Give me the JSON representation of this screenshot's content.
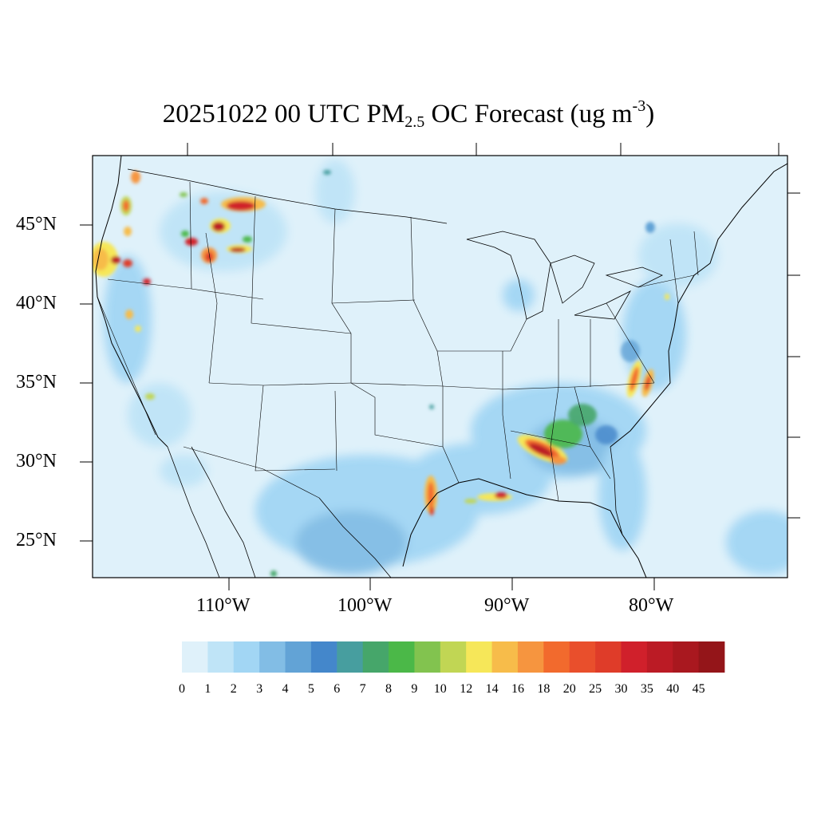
{
  "title": {
    "prefix": "20251022 00 UTC PM",
    "sub": "2.5",
    "mid": " OC Forecast (ug m",
    "sup": "-3",
    "suffix": ")"
  },
  "lat_labels": [
    "45°N",
    "40°N",
    "35°N",
    "30°N",
    "25°N"
  ],
  "lon_labels": [
    "110°W",
    "100°W",
    "90°W",
    "80°W"
  ],
  "colorbar": {
    "labels": [
      "0",
      "1",
      "2",
      "3",
      "4",
      "5",
      "6",
      "7",
      "8",
      "9",
      "10",
      "12",
      "14",
      "16",
      "18",
      "20",
      "25",
      "30",
      "35",
      "40",
      "45"
    ],
    "colors": [
      "#dff1fa",
      "#bfe4f7",
      "#a2d6f4",
      "#82bde5",
      "#62a3d6",
      "#4487cb",
      "#479e9f",
      "#46a66a",
      "#4bb848",
      "#82c34f",
      "#c1d654",
      "#f6e759",
      "#f7bc4a",
      "#f6953f",
      "#f26a2d",
      "#e94f2c",
      "#df3c29",
      "#d0202b",
      "#bb1b25",
      "#a9181f",
      "#941519"
    ]
  },
  "colors": {
    "background_field": "#dff1fa",
    "boundary": "#000000"
  }
}
